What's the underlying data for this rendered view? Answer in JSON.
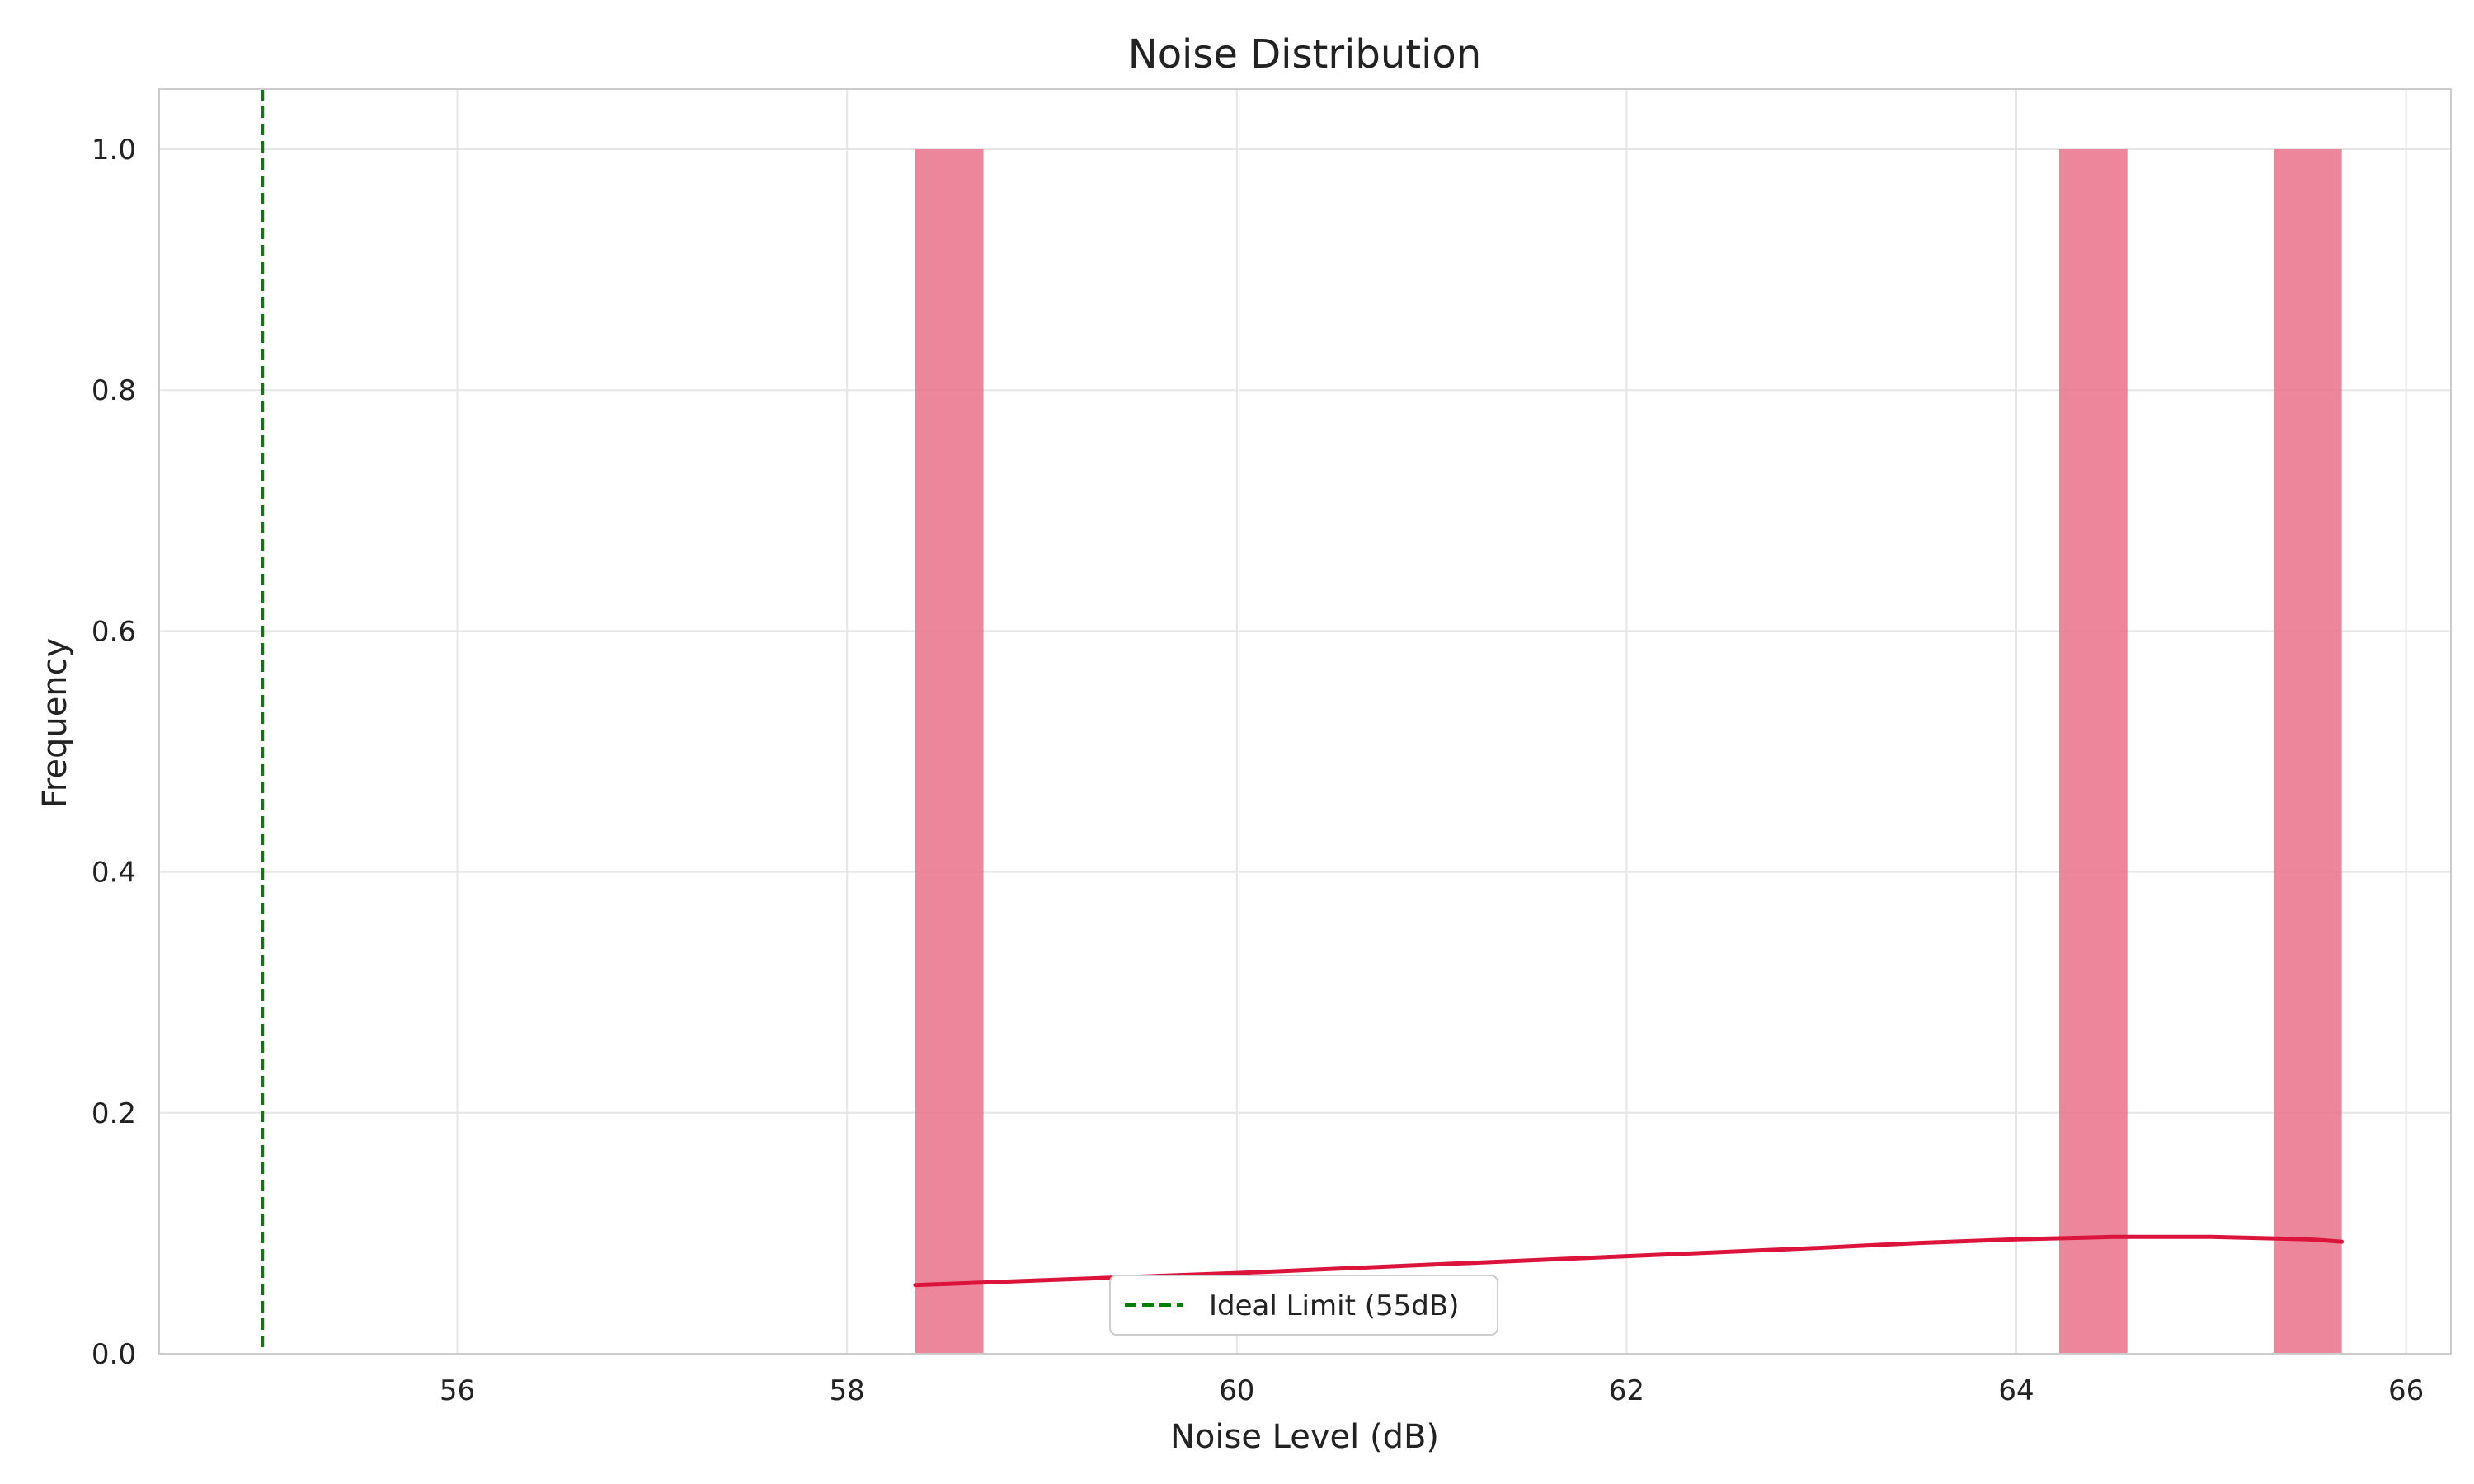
{
  "chart_data": {
    "type": "bar",
    "title": "Noise Distribution",
    "xlabel": "Noise Level (dB)",
    "ylabel": "Frequency",
    "xlim": [
      54.47,
      66.23
    ],
    "ylim": [
      0,
      1.05
    ],
    "xticks": [
      56,
      58,
      60,
      62,
      64,
      66
    ],
    "yticks": [
      0.0,
      0.2,
      0.4,
      0.6,
      0.8,
      1.0
    ],
    "grid": true,
    "bins": [
      {
        "x0": 58.35,
        "x1": 58.7,
        "value": 1.0
      },
      {
        "x0": 64.22,
        "x1": 64.57,
        "value": 1.0
      },
      {
        "x0": 65.32,
        "x1": 65.67,
        "value": 1.0
      }
    ],
    "kde_line": {
      "x": [
        58.35,
        59.0,
        60.0,
        61.0,
        62.0,
        63.0,
        63.5,
        64.0,
        64.5,
        65.0,
        65.5,
        65.67
      ],
      "y": [
        0.057,
        0.061,
        0.067,
        0.074,
        0.081,
        0.088,
        0.092,
        0.095,
        0.097,
        0.097,
        0.095,
        0.093
      ]
    },
    "reference_line": {
      "x": 55,
      "label": "Ideal Limit (55dB)"
    },
    "legend": {
      "placement": "lower-center",
      "entries": [
        "Ideal Limit (55dB)"
      ]
    },
    "colors": {
      "bars": "#e8718a",
      "kde": "#dc143c",
      "reference": "#008000",
      "grid": "#e6e6e6",
      "frame": "#cccccc"
    }
  }
}
